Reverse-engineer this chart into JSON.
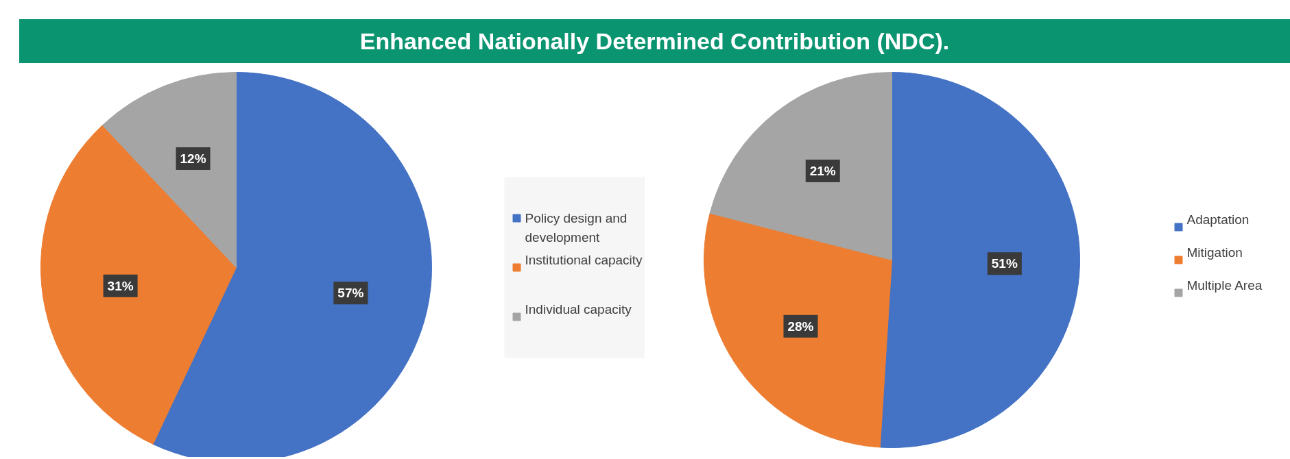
{
  "chart_data": [
    {
      "type": "pie",
      "title": "Enhanced Nationally Determined Contribution (NDC).",
      "categories": [
        "Policy design and development",
        "Institutional capacity",
        "Individual capacity"
      ],
      "values": [
        57,
        31,
        12
      ],
      "value_labels": [
        "57%",
        "31%",
        "12%"
      ],
      "colors": [
        "#4472c4",
        "#ed7d31",
        "#a5a5a5"
      ],
      "legend": "right"
    },
    {
      "type": "pie",
      "categories": [
        "Adaptation",
        "Mitigation",
        "Multiple Area"
      ],
      "values": [
        51,
        28,
        21
      ],
      "value_labels": [
        "51%",
        "28%",
        "21%"
      ],
      "colors": [
        "#4472c4",
        "#ed7d31",
        "#a5a5a5"
      ],
      "legend": "right"
    }
  ]
}
